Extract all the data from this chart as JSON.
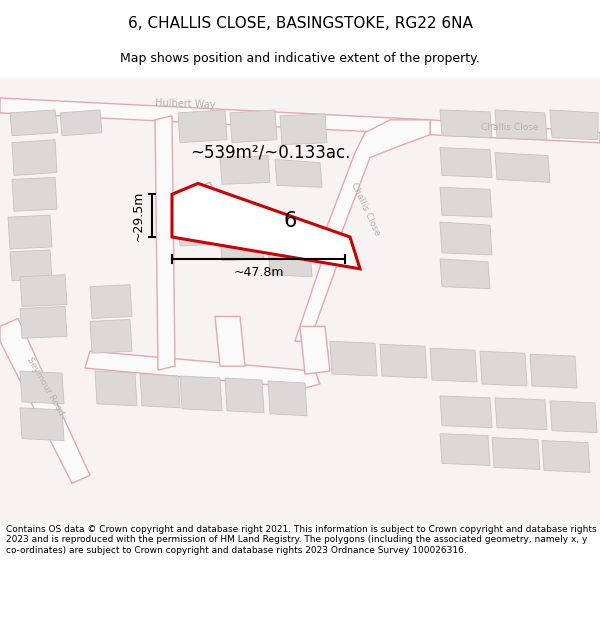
{
  "title_line1": "6, CHALLIS CLOSE, BASINGSTOKE, RG22 6NA",
  "title_line2": "Map shows position and indicative extent of the property.",
  "footer_text": "Contains OS data © Crown copyright and database right 2021. This information is subject to Crown copyright and database rights 2023 and is reproduced with the permission of HM Land Registry. The polygons (including the associated geometry, namely x, y co-ordinates) are subject to Crown copyright and database rights 2023 Ordnance Survey 100026316.",
  "area_label": "~539m²/~0.133ac.",
  "width_label": "~47.8m",
  "height_label": "~29.5m",
  "plot_number": "6",
  "map_bg": "#f7f3f3",
  "road_line_color": "#e8a8a8",
  "building_color": "#ddd8d8",
  "building_edge_color": "#c8c0c0",
  "plot_color": "#cc0000",
  "dim_color": "#000000",
  "street_label_color": "#b8b0b0",
  "title_fontsize": 11,
  "subtitle_fontsize": 9,
  "footer_fontsize": 6.5
}
